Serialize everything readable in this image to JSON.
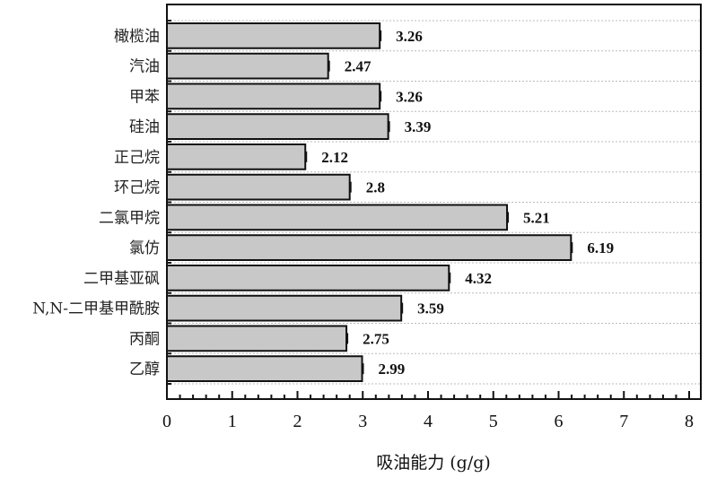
{
  "chart_data": {
    "type": "bar",
    "orientation": "horizontal",
    "title": "",
    "xlabel": "吸油能力 (g/g)",
    "ylabel": "",
    "categories": [
      "橄榄油",
      "汽油",
      "甲苯",
      "硅油",
      "正己烷",
      "环己烷",
      "二氯甲烷",
      "氯仿",
      "二甲基亚砜",
      "N,N-二甲基甲酰胺",
      "丙酮",
      "乙醇"
    ],
    "values": [
      3.26,
      2.47,
      3.26,
      3.39,
      2.12,
      2.8,
      5.21,
      6.19,
      4.32,
      3.59,
      2.75,
      2.99
    ],
    "value_labels": [
      "3.26",
      "2.47",
      "3.26",
      "3.39",
      "2.12",
      "2.8",
      "5.21",
      "6.19",
      "4.32",
      "3.59",
      "2.75",
      "2.99"
    ],
    "xlim": [
      0,
      8
    ],
    "xticks": [
      "0",
      "1",
      "2",
      "3",
      "4",
      "5",
      "6",
      "7",
      "8"
    ],
    "grid": true,
    "error_bars": true,
    "bar_color": "#c8c8c8",
    "edge_color": "#111111"
  }
}
